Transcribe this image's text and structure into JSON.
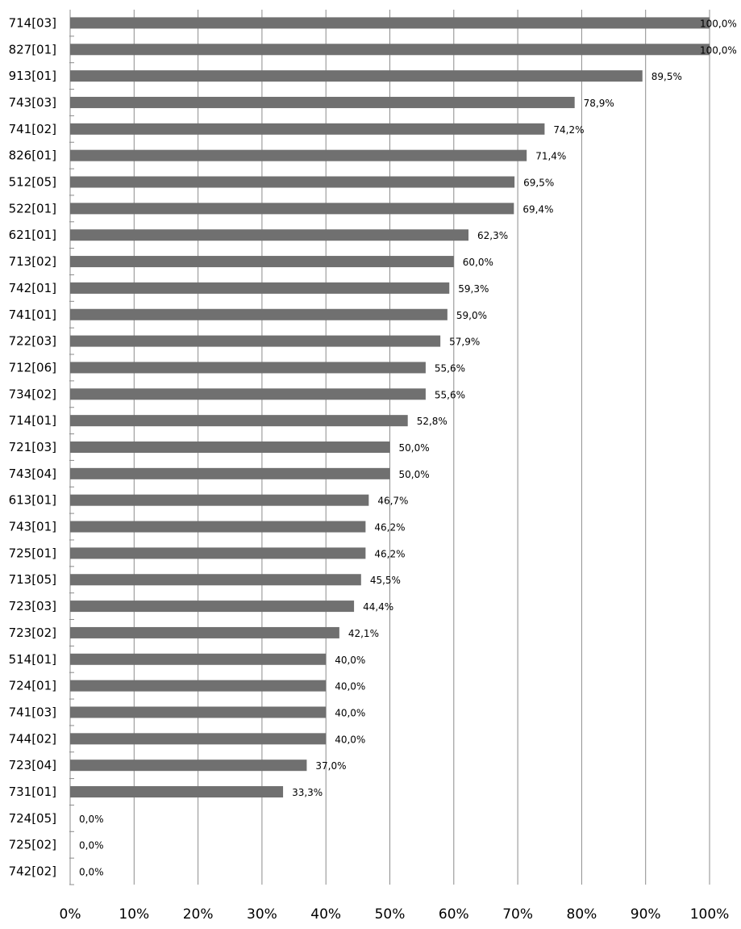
{
  "chart_data": {
    "type": "bar",
    "orientation": "horizontal",
    "title": "",
    "xlabel": "",
    "ylabel": "",
    "xlim": [
      0,
      100
    ],
    "x_ticks": [
      "0%",
      "10%",
      "20%",
      "30%",
      "40%",
      "50%",
      "60%",
      "70%",
      "80%",
      "90%",
      "100%"
    ],
    "grid": "vertical",
    "bar_color": "#707070",
    "categories": [
      "714[03]",
      "827[01]",
      "913[01]",
      "743[03]",
      "741[02]",
      "826[01]",
      "512[05]",
      "522[01]",
      "621[01]",
      "713[02]",
      "742[01]",
      "741[01]",
      "722[03]",
      "712[06]",
      "734[02]",
      "714[01]",
      "721[03]",
      "743[04]",
      "613[01]",
      "743[01]",
      "725[01]",
      "713[05]",
      "723[03]",
      "723[02]",
      "514[01]",
      "724[01]",
      "741[03]",
      "744[02]",
      "723[04]",
      "731[01]",
      "724[05]",
      "725[02]",
      "742[02]"
    ],
    "values": [
      100.0,
      100.0,
      89.5,
      78.9,
      74.2,
      71.4,
      69.5,
      69.4,
      62.3,
      60.0,
      59.3,
      59.0,
      57.9,
      55.6,
      55.6,
      52.8,
      50.0,
      50.0,
      46.7,
      46.2,
      46.2,
      45.5,
      44.4,
      42.1,
      40.0,
      40.0,
      40.0,
      40.0,
      37.0,
      33.3,
      0.0,
      0.0,
      0.0
    ],
    "data_labels": [
      "100,0%",
      "100,0%",
      "89,5%",
      "78,9%",
      "74,2%",
      "71,4%",
      "69,5%",
      "69,4%",
      "62,3%",
      "60,0%",
      "59,3%",
      "59,0%",
      "57,9%",
      "55,6%",
      "55,6%",
      "52,8%",
      "50,0%",
      "50,0%",
      "46,7%",
      "46,2%",
      "46,2%",
      "45,5%",
      "44,4%",
      "42,1%",
      "40,0%",
      "40,0%",
      "40,0%",
      "40,0%",
      "37,0%",
      "33,3%",
      "0,0%",
      "0,0%",
      "0,0%"
    ]
  }
}
